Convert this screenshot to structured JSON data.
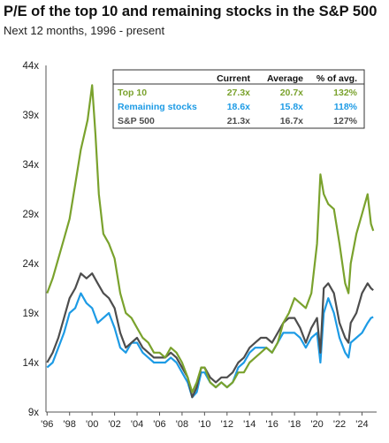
{
  "header": {
    "title": "P/E of the top 10 and remaining stocks in the S&P 500",
    "subtitle": "Next 12 months, 1996 - present"
  },
  "colors": {
    "top10": "#7aa22d",
    "remaining": "#1d9be5",
    "sp500": "#4d4d4d"
  },
  "legend_table": {
    "columns": [
      "Current",
      "Average",
      "% of avg."
    ],
    "rows": [
      {
        "label": "Top 10",
        "current": "27.3x",
        "average": "20.7x",
        "pct": "132%",
        "color": "#7aa22d"
      },
      {
        "label": "Remaining stocks",
        "current": "18.6x",
        "average": "15.8x",
        "pct": "118%",
        "color": "#1d9be5"
      },
      {
        "label": "S&P 500",
        "current": "21.3x",
        "average": "16.7x",
        "pct": "127%",
        "color": "#4d4d4d"
      }
    ]
  },
  "chart_data": {
    "type": "line",
    "title": "P/E of the top 10 and remaining stocks in the S&P 500",
    "subtitle": "Next 12 months, 1996 - present",
    "ylim": [
      9,
      44
    ],
    "xlim": [
      1995.9,
      2025.3
    ],
    "y_ticks": [
      9,
      14,
      19,
      24,
      29,
      34,
      39,
      44
    ],
    "y_tick_labels": [
      "9x",
      "14x",
      "19x",
      "24x",
      "29x",
      "34x",
      "39x",
      "44x"
    ],
    "x_ticks": [
      1996,
      1998,
      2000,
      2002,
      2004,
      2006,
      2008,
      2010,
      2012,
      2014,
      2016,
      2018,
      2020,
      2022,
      2024
    ],
    "x_tick_labels": [
      "'96",
      "'98",
      "'00",
      "'02",
      "'04",
      "'06",
      "'08",
      "'10",
      "'12",
      "'14",
      "'16",
      "'18",
      "'20",
      "'22",
      "'24"
    ],
    "grid": false,
    "legend": "top-right",
    "series": [
      {
        "name": "Top 10",
        "color": "#7aa22d",
        "x": [
          1996.0,
          1996.5,
          1997.0,
          1997.5,
          1998.0,
          1998.5,
          1999.0,
          1999.3,
          1999.6,
          2000.0,
          2000.3,
          2000.6,
          2001.0,
          2001.5,
          2002.0,
          2002.5,
          2003.0,
          2003.5,
          2004.0,
          2004.5,
          2005.0,
          2005.5,
          2006.0,
          2006.5,
          2007.0,
          2007.5,
          2008.0,
          2008.5,
          2008.9,
          2009.3,
          2009.7,
          2010.0,
          2010.5,
          2011.0,
          2011.5,
          2012.0,
          2012.5,
          2013.0,
          2013.5,
          2014.0,
          2014.5,
          2015.0,
          2015.5,
          2016.0,
          2016.5,
          2017.0,
          2017.5,
          2018.0,
          2018.5,
          2019.0,
          2019.5,
          2020.0,
          2020.3,
          2020.6,
          2021.0,
          2021.5,
          2022.0,
          2022.5,
          2022.8,
          2023.0,
          2023.5,
          2024.0,
          2024.5,
          2024.8,
          2025.0
        ],
        "y": [
          21.0,
          22.5,
          24.5,
          26.5,
          28.5,
          32.0,
          35.5,
          37.0,
          38.5,
          42.0,
          37.0,
          31.0,
          27.0,
          26.0,
          24.5,
          21.0,
          19.0,
          18.5,
          17.5,
          16.5,
          16.0,
          15.0,
          15.0,
          14.5,
          15.5,
          15.0,
          14.0,
          12.5,
          11.0,
          12.0,
          13.5,
          13.5,
          12.0,
          11.5,
          12.0,
          11.5,
          12.0,
          13.0,
          13.0,
          14.0,
          14.5,
          15.0,
          15.5,
          15.0,
          16.0,
          18.0,
          19.0,
          20.5,
          20.0,
          19.5,
          21.0,
          26.0,
          33.0,
          31.0,
          30.0,
          29.5,
          26.0,
          22.0,
          21.0,
          24.0,
          27.0,
          29.0,
          31.0,
          28.0,
          27.3
        ]
      },
      {
        "name": "Remaining stocks",
        "color": "#1d9be5",
        "x": [
          1996.0,
          1996.5,
          1997.0,
          1997.5,
          1998.0,
          1998.5,
          1999.0,
          1999.5,
          2000.0,
          2000.5,
          2001.0,
          2001.5,
          2002.0,
          2002.5,
          2003.0,
          2003.5,
          2004.0,
          2004.5,
          2005.0,
          2005.5,
          2006.0,
          2006.5,
          2007.0,
          2007.5,
          2008.0,
          2008.5,
          2008.9,
          2009.3,
          2009.7,
          2010.0,
          2010.5,
          2011.0,
          2011.5,
          2012.0,
          2012.5,
          2013.0,
          2013.5,
          2014.0,
          2014.5,
          2015.0,
          2015.5,
          2016.0,
          2016.5,
          2017.0,
          2017.5,
          2018.0,
          2018.5,
          2019.0,
          2019.5,
          2020.0,
          2020.3,
          2020.6,
          2021.0,
          2021.5,
          2022.0,
          2022.5,
          2022.8,
          2023.0,
          2023.5,
          2024.0,
          2024.5,
          2024.8,
          2025.0
        ],
        "y": [
          13.5,
          14.0,
          15.5,
          17.0,
          19.0,
          19.5,
          21.0,
          20.0,
          19.5,
          18.0,
          18.5,
          19.0,
          17.5,
          15.5,
          15.0,
          16.0,
          16.0,
          15.0,
          14.5,
          14.0,
          14.0,
          14.0,
          14.5,
          14.0,
          13.0,
          12.0,
          10.5,
          11.0,
          13.0,
          13.0,
          12.0,
          11.5,
          12.0,
          11.5,
          12.0,
          13.5,
          14.0,
          15.0,
          15.5,
          15.5,
          15.5,
          15.0,
          16.0,
          17.0,
          17.0,
          17.0,
          16.5,
          15.5,
          16.5,
          17.0,
          14.0,
          19.0,
          20.5,
          19.0,
          16.5,
          15.0,
          14.5,
          16.0,
          16.5,
          17.0,
          18.0,
          18.5,
          18.6
        ]
      },
      {
        "name": "S&P 500",
        "color": "#4d4d4d",
        "x": [
          1996.0,
          1996.5,
          1997.0,
          1997.5,
          1998.0,
          1998.5,
          1999.0,
          1999.5,
          2000.0,
          2000.5,
          2001.0,
          2001.5,
          2002.0,
          2002.5,
          2003.0,
          2003.5,
          2004.0,
          2004.5,
          2005.0,
          2005.5,
          2006.0,
          2006.5,
          2007.0,
          2007.5,
          2008.0,
          2008.5,
          2008.9,
          2009.3,
          2009.7,
          2010.0,
          2010.5,
          2011.0,
          2011.5,
          2012.0,
          2012.5,
          2013.0,
          2013.5,
          2014.0,
          2014.5,
          2015.0,
          2015.5,
          2016.0,
          2016.5,
          2017.0,
          2017.5,
          2018.0,
          2018.5,
          2019.0,
          2019.5,
          2020.0,
          2020.3,
          2020.6,
          2021.0,
          2021.5,
          2022.0,
          2022.5,
          2022.8,
          2023.0,
          2023.5,
          2024.0,
          2024.5,
          2024.8,
          2025.0
        ],
        "y": [
          14.0,
          15.0,
          16.5,
          18.5,
          20.5,
          21.5,
          23.0,
          22.5,
          23.0,
          22.0,
          21.0,
          20.5,
          19.5,
          17.0,
          15.5,
          16.0,
          16.5,
          15.5,
          15.0,
          14.5,
          14.5,
          14.5,
          15.0,
          14.5,
          13.5,
          12.5,
          10.5,
          11.5,
          13.5,
          13.5,
          12.5,
          12.0,
          12.5,
          12.5,
          13.0,
          14.0,
          14.5,
          15.5,
          16.0,
          16.5,
          16.5,
          16.0,
          17.0,
          18.0,
          18.5,
          18.5,
          17.5,
          16.0,
          17.5,
          18.5,
          15.0,
          21.5,
          22.0,
          21.0,
          18.0,
          16.5,
          16.0,
          18.0,
          19.0,
          21.0,
          22.0,
          21.5,
          21.3
        ]
      }
    ]
  }
}
